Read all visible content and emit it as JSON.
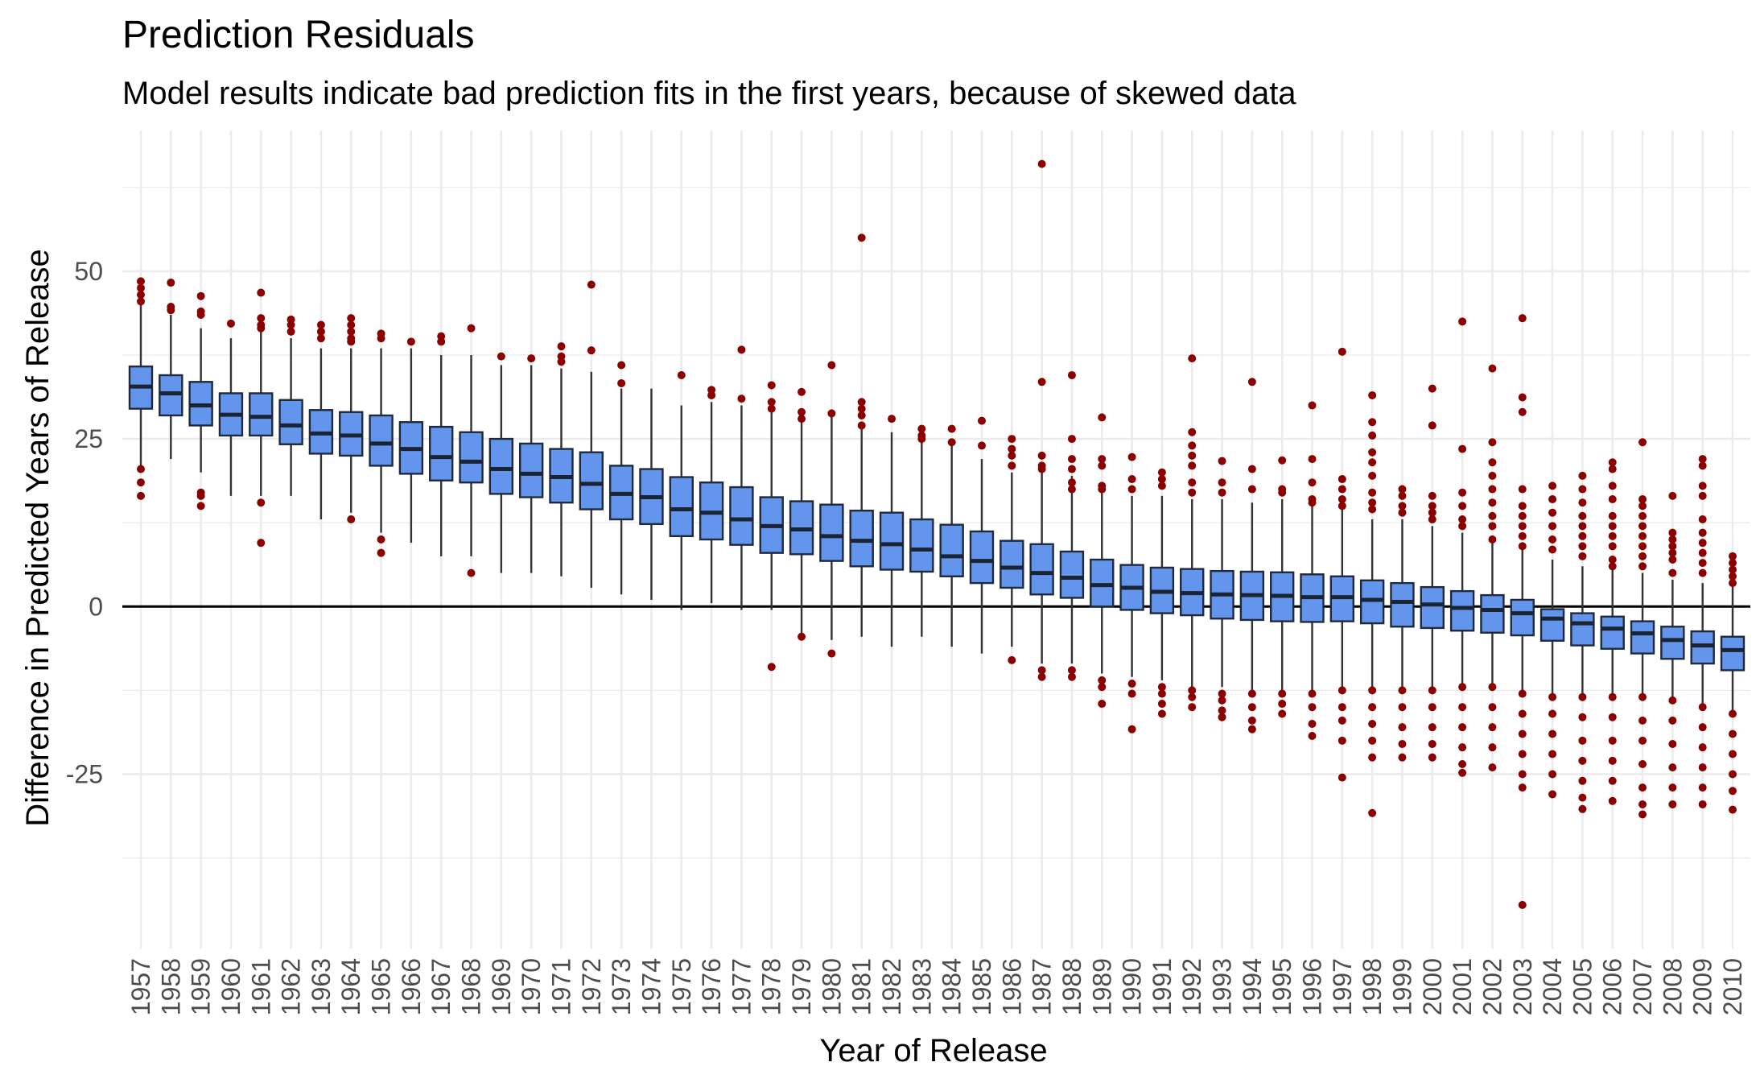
{
  "chart_data": {
    "type": "box",
    "title": "Prediction Residuals",
    "subtitle": "Model results indicate bad prediction fits in the first years, because of skewed data",
    "xlabel": "Year of Release",
    "ylabel": "Difference in Predicted Years of Release",
    "ylim": [
      -51,
      71
    ],
    "yticks": [
      -25,
      0,
      25,
      50
    ],
    "grid": true,
    "reference_line": 0,
    "colors": {
      "box_fill": "#6495ED",
      "box_border": "#1f2a3d",
      "median": "#1a2433",
      "outlier": "#8B0000",
      "grid": "#ebebeb",
      "zero_line": "#000000"
    },
    "categories": [
      "1957",
      "1958",
      "1959",
      "1960",
      "1961",
      "1962",
      "1963",
      "1964",
      "1965",
      "1966",
      "1967",
      "1968",
      "1969",
      "1970",
      "1971",
      "1972",
      "1973",
      "1974",
      "1975",
      "1976",
      "1977",
      "1978",
      "1979",
      "1980",
      "1981",
      "1982",
      "1983",
      "1984",
      "1985",
      "1986",
      "1987",
      "1988",
      "1989",
      "1990",
      "1991",
      "1992",
      "1993",
      "1994",
      "1995",
      "1996",
      "1997",
      "1998",
      "1999",
      "2000",
      "2001",
      "2002",
      "2003",
      "2004",
      "2005",
      "2006",
      "2007",
      "2008",
      "2009",
      "2010"
    ],
    "boxes": [
      {
        "min": 20.5,
        "q1": 29.5,
        "median": 32.8,
        "q3": 35.8,
        "max": 45
      },
      {
        "min": 22,
        "q1": 28.5,
        "median": 31.8,
        "q3": 34.5,
        "max": 43.5
      },
      {
        "min": 20,
        "q1": 27,
        "median": 30,
        "q3": 33.5,
        "max": 41.5
      },
      {
        "min": 16.5,
        "q1": 25.5,
        "median": 28.6,
        "q3": 31.8,
        "max": 40
      },
      {
        "min": 16.5,
        "q1": 25.5,
        "median": 28.3,
        "q3": 31.8,
        "max": 41
      },
      {
        "min": 16.5,
        "q1": 24.2,
        "median": 27,
        "q3": 30.8,
        "max": 40
      },
      {
        "min": 13,
        "q1": 22.8,
        "median": 25.8,
        "q3": 29.3,
        "max": 38.5
      },
      {
        "min": 14,
        "q1": 22.5,
        "median": 25.5,
        "q3": 29,
        "max": 38.5
      },
      {
        "min": 11,
        "q1": 21,
        "median": 24.3,
        "q3": 28.5,
        "max": 38.5
      },
      {
        "min": 9.5,
        "q1": 19.8,
        "median": 23.5,
        "q3": 27.5,
        "max": 38.5
      },
      {
        "min": 7.5,
        "q1": 18.8,
        "median": 22.3,
        "q3": 26.8,
        "max": 37.5
      },
      {
        "min": 7.5,
        "q1": 18.5,
        "median": 21.6,
        "q3": 26,
        "max": 37.5
      },
      {
        "min": 5,
        "q1": 16.8,
        "median": 20.5,
        "q3": 25,
        "max": 36
      },
      {
        "min": 5,
        "q1": 16.3,
        "median": 19.8,
        "q3": 24.3,
        "max": 36
      },
      {
        "min": 4.5,
        "q1": 15.5,
        "median": 19.3,
        "q3": 23.5,
        "max": 35.5
      },
      {
        "min": 2.8,
        "q1": 14.5,
        "median": 18.3,
        "q3": 23,
        "max": 35
      },
      {
        "min": 1.8,
        "q1": 13,
        "median": 16.8,
        "q3": 21,
        "max": 32.5
      },
      {
        "min": 1,
        "q1": 12.3,
        "median": 16.3,
        "q3": 20.5,
        "max": 32.5
      },
      {
        "min": -0.5,
        "q1": 10.5,
        "median": 14.5,
        "q3": 19.3,
        "max": 30
      },
      {
        "min": 0.5,
        "q1": 10,
        "median": 14,
        "q3": 18.5,
        "max": 30.5
      },
      {
        "min": -0.5,
        "q1": 9.2,
        "median": 13,
        "q3": 17.8,
        "max": 30
      },
      {
        "min": -0.5,
        "q1": 8,
        "median": 12,
        "q3": 16.3,
        "max": 29.5
      },
      {
        "min": -4,
        "q1": 7.8,
        "median": 11.5,
        "q3": 15.7,
        "max": 27.5
      },
      {
        "min": -5,
        "q1": 6.8,
        "median": 10.5,
        "q3": 15.2,
        "max": 28.5
      },
      {
        "min": -4.5,
        "q1": 6,
        "median": 9.8,
        "q3": 14.3,
        "max": 26.5
      },
      {
        "min": -6,
        "q1": 5.5,
        "median": 9.3,
        "q3": 14,
        "max": 26
      },
      {
        "min": -4.5,
        "q1": 5.2,
        "median": 8.5,
        "q3": 13,
        "max": 25
      },
      {
        "min": -6,
        "q1": 4.5,
        "median": 7.5,
        "q3": 12.2,
        "max": 24
      },
      {
        "min": -7,
        "q1": 3.5,
        "median": 6.8,
        "q3": 11.2,
        "max": 22
      },
      {
        "min": -6,
        "q1": 2.8,
        "median": 5.8,
        "q3": 9.8,
        "max": 20
      },
      {
        "min": -8.5,
        "q1": 1.8,
        "median": 5,
        "q3": 9.3,
        "max": 20.5
      },
      {
        "min": -8.5,
        "q1": 1.3,
        "median": 4.3,
        "q3": 8.2,
        "max": 19.5
      },
      {
        "min": -10,
        "q1": 0,
        "median": 3.2,
        "q3": 7,
        "max": 17
      },
      {
        "min": -10.5,
        "q1": -0.5,
        "median": 2.8,
        "q3": 6.2,
        "max": 16.5
      },
      {
        "min": -11,
        "q1": -1,
        "median": 2.2,
        "q3": 5.8,
        "max": 16.5
      },
      {
        "min": -12,
        "q1": -1.3,
        "median": 2,
        "q3": 5.6,
        "max": 16
      },
      {
        "min": -12,
        "q1": -1.8,
        "median": 1.8,
        "q3": 5.3,
        "max": 16
      },
      {
        "min": -12.5,
        "q1": -2,
        "median": 1.7,
        "q3": 5.2,
        "max": 15.5
      },
      {
        "min": -12.5,
        "q1": -2.2,
        "median": 1.6,
        "q3": 5.1,
        "max": 16
      },
      {
        "min": -12.5,
        "q1": -2.3,
        "median": 1.4,
        "q3": 4.8,
        "max": 15
      },
      {
        "min": -12.5,
        "q1": -2.2,
        "median": 1.4,
        "q3": 4.5,
        "max": 14.5
      },
      {
        "min": -12,
        "q1": -2.5,
        "median": 1,
        "q3": 3.9,
        "max": 13
      },
      {
        "min": -12,
        "q1": -3,
        "median": 0.7,
        "q3": 3.5,
        "max": 13
      },
      {
        "min": -12,
        "q1": -3.2,
        "median": 0.3,
        "q3": 2.9,
        "max": 12
      },
      {
        "min": -12,
        "q1": -3.6,
        "median": -0.2,
        "q3": 2.3,
        "max": 11
      },
      {
        "min": -12,
        "q1": -3.9,
        "median": -0.5,
        "q3": 1.7,
        "max": 9.5
      },
      {
        "min": -12.5,
        "q1": -4.3,
        "median": -1,
        "q3": 1,
        "max": 8.5
      },
      {
        "min": -13,
        "q1": -5.1,
        "median": -1.8,
        "q3": -0.4,
        "max": 7
      },
      {
        "min": -13,
        "q1": -5.8,
        "median": -2.5,
        "q3": -1,
        "max": 6
      },
      {
        "min": -13,
        "q1": -6.3,
        "median": -3.3,
        "q3": -1.5,
        "max": 5.5
      },
      {
        "min": -13.5,
        "q1": -7,
        "median": -4,
        "q3": -2.2,
        "max": 5
      },
      {
        "min": -14,
        "q1": -7.8,
        "median": -5,
        "q3": -3,
        "max": 4
      },
      {
        "min": -15,
        "q1": -8.5,
        "median": -5.8,
        "q3": -3.7,
        "max": 3.5
      },
      {
        "min": -16,
        "q1": -9.5,
        "median": -6.5,
        "q3": -4.5,
        "max": 3
      }
    ],
    "outliers": [
      [
        48.5,
        47.5,
        46.5,
        45.5,
        20.5,
        18.5,
        16.5
      ],
      [
        48.3,
        44.7,
        44.2
      ],
      [
        46.3,
        44,
        43.5,
        17,
        16.5,
        15
      ],
      [
        42.2
      ],
      [
        46.8,
        43,
        42,
        41.5,
        15.5,
        9.5
      ],
      [
        42.8,
        42,
        41
      ],
      [
        42,
        41,
        40
      ],
      [
        43,
        42,
        41,
        40,
        39.5,
        13
      ],
      [
        40.7,
        40,
        10,
        8
      ],
      [
        39.5
      ],
      [
        40.3,
        39.5
      ],
      [
        41.5,
        5
      ],
      [
        37.3
      ],
      [
        37
      ],
      [
        38.8,
        37.3,
        36.5
      ],
      [
        48,
        38.2
      ],
      [
        36,
        33.3
      ],
      [],
      [
        34.5
      ],
      [
        32.3,
        31.5
      ],
      [
        38.3,
        31
      ],
      [
        33,
        30.5,
        29.5,
        -9
      ],
      [
        32,
        29,
        28,
        -4.5
      ],
      [
        36,
        28.8,
        -7
      ],
      [
        55,
        30.5,
        29.5,
        28.5,
        27
      ],
      [
        28
      ],
      [
        26.5,
        25.5,
        25
      ],
      [
        26.5,
        24.5
      ],
      [
        27.7,
        24
      ],
      [
        25,
        23.5,
        22.5,
        21,
        -8
      ],
      [
        66,
        33.5,
        22.5,
        21,
        20.5,
        -9.5,
        -10.5
      ],
      [
        34.5,
        25,
        22,
        20.5,
        18.5,
        17.5,
        -9.5,
        -10.5
      ],
      [
        28.2,
        22,
        21,
        18,
        17.5,
        -11,
        -12,
        -14.5
      ],
      [
        22.3,
        19,
        17.5,
        -11.5,
        -13,
        -18.3
      ],
      [
        20,
        19,
        18,
        -12,
        -13,
        -14.5,
        -16
      ],
      [
        37,
        26,
        24,
        22.5,
        21,
        18.5,
        17,
        -12.5,
        -13.5,
        -15
      ],
      [
        21.7,
        18.5,
        17,
        -13,
        -14,
        -15.5,
        -16.5
      ],
      [
        33.5,
        20.5,
        17.5,
        -13,
        -15,
        -17,
        -18.3
      ],
      [
        21.8,
        17.5,
        17,
        -13,
        -14.5,
        -16
      ],
      [
        30,
        22,
        18.5,
        16,
        15.5,
        -13,
        -15,
        -17.5,
        -19.3
      ],
      [
        38,
        19,
        17.5,
        16,
        15,
        -12.5,
        -15,
        -17,
        -20,
        -25.5
      ],
      [
        31.5,
        27.5,
        25.5,
        23,
        21.5,
        19.5,
        17,
        15.5,
        14.5,
        -12.5,
        -15,
        -17.5,
        -20,
        -22.5,
        -30.8
      ],
      [
        17.5,
        16.5,
        15,
        14,
        -12.5,
        -15,
        -18,
        -20.5,
        -22.5
      ],
      [
        32.5,
        27,
        16.5,
        15,
        14,
        13,
        -12.5,
        -15,
        -18,
        -20.5,
        -22.5
      ],
      [
        42.5,
        23.5,
        17,
        15,
        13,
        12,
        -12,
        -15,
        -18,
        -21,
        -23.5,
        -24.8
      ],
      [
        35.5,
        24.5,
        21.5,
        19.5,
        17.5,
        15.5,
        13.5,
        12,
        10,
        -12,
        -15,
        -18,
        -21,
        -24
      ],
      [
        43,
        31.2,
        29,
        17.5,
        15,
        13.5,
        12,
        10.5,
        9,
        -13,
        -16,
        -19,
        -22,
        -25,
        -27,
        -44.5
      ],
      [
        18,
        16,
        14,
        12,
        10,
        8.5,
        -13.5,
        -16,
        -19,
        -22,
        -25,
        -28
      ],
      [
        19.5,
        17.5,
        15.5,
        13.5,
        12,
        10.5,
        9,
        7.5,
        -13.5,
        -16.5,
        -20,
        -23,
        -26,
        -28.5,
        -30.2
      ],
      [
        21.5,
        20.5,
        18,
        16,
        13.5,
        12,
        10.5,
        9,
        7,
        6,
        -13.5,
        -16.5,
        -20,
        -23,
        -26,
        -29
      ],
      [
        24.5,
        16,
        15,
        13.5,
        12,
        10.5,
        9,
        7.5,
        6,
        -13.5,
        -17,
        -20,
        -23.5,
        -27,
        -29.5,
        -31
      ],
      [
        16.5,
        11,
        10,
        9,
        8,
        7,
        5,
        -14,
        -17,
        -20.5,
        -24,
        -27,
        -29.5
      ],
      [
        22,
        21,
        18,
        16.5,
        13,
        11,
        9.5,
        8,
        6.5,
        5,
        -15,
        -18,
        -21,
        -24,
        -27,
        -29.5
      ],
      [
        7.5,
        6.5,
        5.5,
        4.5,
        3.5,
        -16,
        -19,
        -22,
        -25,
        -27.5,
        -30.3
      ]
    ]
  }
}
